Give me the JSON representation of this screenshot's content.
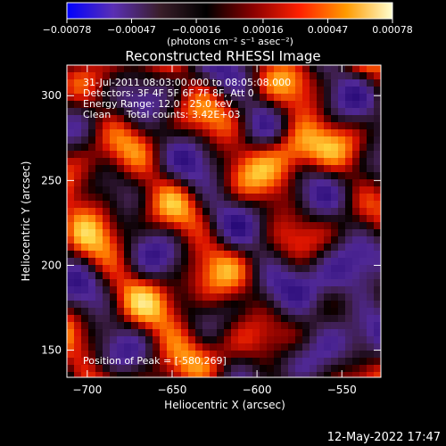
{
  "chart_data": {
    "type": "heatmap",
    "title": "Reconstructed RHESSI Image",
    "xlabel": "Heliocentric X (arcsec)",
    "ylabel": "Heliocentric Y (arcsec)",
    "xlim": [
      -712,
      -527
    ],
    "ylim": [
      134,
      318
    ],
    "x_ticks": [
      -700,
      -650,
      -600,
      -550
    ],
    "x_tick_labels": [
      "−700",
      "−650",
      "−600",
      "−550"
    ],
    "y_ticks": [
      150,
      200,
      250,
      300
    ],
    "y_tick_labels": [
      "150",
      "200",
      "250",
      "300"
    ],
    "colorbar": {
      "range": [
        -0.00078,
        0.00078
      ],
      "ticks": [
        -0.00078,
        -0.00047,
        -0.00016,
        0.00016,
        0.00047,
        0.00078
      ],
      "tick_labels": [
        "−0.00078",
        "−0.00047",
        "−0.00016",
        "0.00016",
        "0.00047",
        "0.00078"
      ],
      "units_label": "(photons cm⁻² s⁻¹ asec⁻²)",
      "colors": [
        "#0000ff",
        "#5a2fb4",
        "#3a1e2a",
        "#000000",
        "#8a0000",
        "#ff2000",
        "#ff9a00",
        "#ffffd0"
      ]
    },
    "annotations": [
      "31-Jul-2011 08:03:00.000 to 08:05:08.000",
      "Detectors: 3F 4F 5F 6F 7F 8F, Att 0",
      "Energy Range: 12.0 - 25.0 keV",
      "Clean     Total counts: 3.42E+03"
    ],
    "peak_label": "Position of Peak = [-580,269]",
    "peak": {
      "x": -580,
      "y": 269
    },
    "grid": false
  },
  "footer": {
    "date_stamp": "12-May-2022 17:47"
  }
}
